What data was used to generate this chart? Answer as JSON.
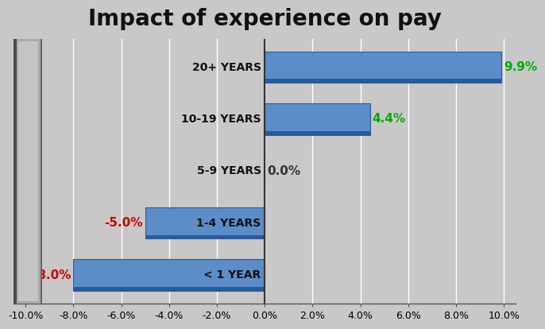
{
  "title": "Impact of experience on pay",
  "title_fontsize": 20,
  "categories": [
    "< 1 YEAR",
    "1-4 YEARS",
    "5-9 YEARS",
    "10-19 YEARS",
    "20+ YEARS"
  ],
  "values": [
    -8.0,
    -5.0,
    0.0,
    4.4,
    9.9
  ],
  "bar_color": "#5B8DC8",
  "bar_edge_color": "#2A5A9A",
  "bar_bottom_color": "#2A5A9A",
  "positive_label_color": "#00AA00",
  "negative_label_color": "#CC0000",
  "zero_label_color": "#333333",
  "xlim": [
    -10.5,
    10.5
  ],
  "xticks": [
    -10.0,
    -8.0,
    -6.0,
    -4.0,
    -2.0,
    0.0,
    2.0,
    4.0,
    6.0,
    8.0,
    10.0
  ],
  "background_color": "#C8C8C8",
  "grid_color": "#FFFFFF",
  "bar_height": 0.6,
  "panel_face_color": "#B0B0B0",
  "panel_dark_color": "#555555",
  "panel_light_color": "#D8D8D8",
  "label_fontsize": 11,
  "ytick_fontsize": 10,
  "xtick_fontsize": 9
}
